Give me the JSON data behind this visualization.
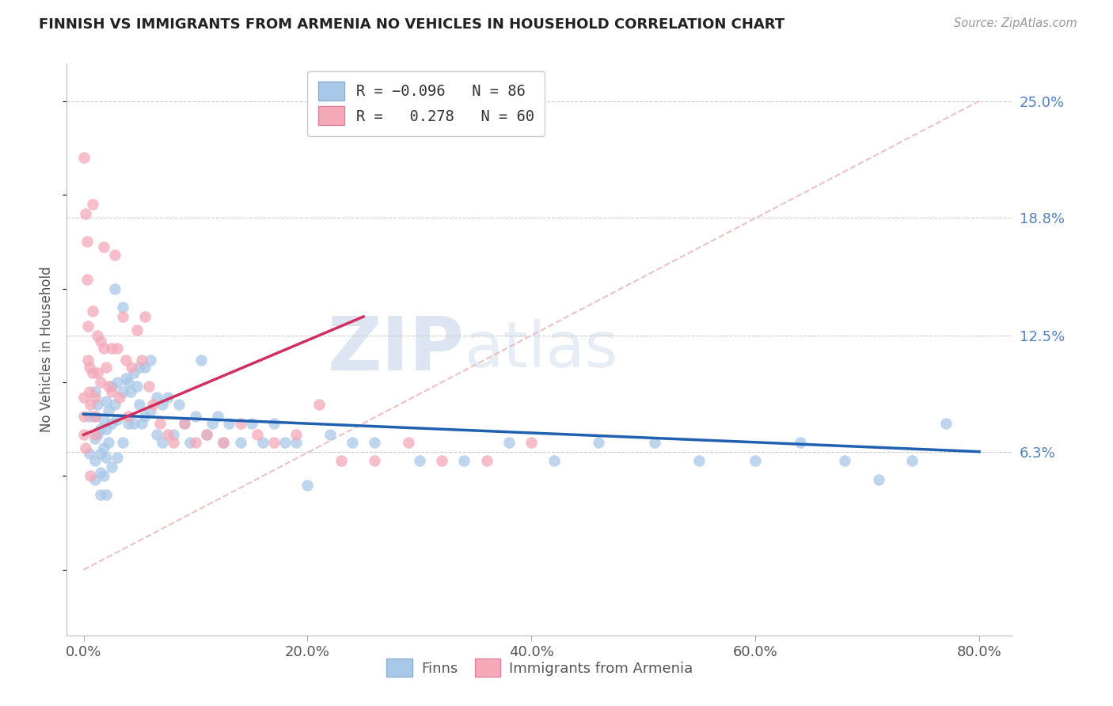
{
  "title": "FINNISH VS IMMIGRANTS FROM ARMENIA NO VEHICLES IN HOUSEHOLD CORRELATION CHART",
  "source": "Source: ZipAtlas.com",
  "xlabel_ticks": [
    "0.0%",
    "20.0%",
    "40.0%",
    "60.0%",
    "80.0%"
  ],
  "xlabel_tick_vals": [
    0.0,
    0.2,
    0.4,
    0.6,
    0.8
  ],
  "ylabel": "No Vehicles in Household",
  "ylabel_ticks": [
    "6.3%",
    "12.5%",
    "18.8%",
    "25.0%"
  ],
  "ylabel_tick_vals": [
    0.063,
    0.125,
    0.188,
    0.25
  ],
  "ymin": -0.035,
  "ymax": 0.27,
  "xmin": -0.015,
  "xmax": 0.83,
  "finns_R": -0.096,
  "finns_N": 86,
  "armenia_R": 0.278,
  "armenia_N": 60,
  "finns_color": "#a8c8e8",
  "armenia_color": "#f4a8b8",
  "finns_line_color": "#2060b0",
  "armenia_line_color": "#d03060",
  "diagonal_line_color": "#e8b8b8",
  "watermark_zip": "ZIP",
  "watermark_atlas": "atlas",
  "finns_x": [
    0.005,
    0.005,
    0.01,
    0.01,
    0.01,
    0.01,
    0.01,
    0.012,
    0.012,
    0.015,
    0.015,
    0.015,
    0.015,
    0.018,
    0.018,
    0.018,
    0.02,
    0.02,
    0.02,
    0.02,
    0.022,
    0.022,
    0.025,
    0.025,
    0.025,
    0.028,
    0.028,
    0.03,
    0.03,
    0.03,
    0.035,
    0.035,
    0.035,
    0.038,
    0.04,
    0.04,
    0.042,
    0.045,
    0.045,
    0.048,
    0.05,
    0.05,
    0.052,
    0.055,
    0.055,
    0.06,
    0.06,
    0.065,
    0.065,
    0.07,
    0.07,
    0.075,
    0.08,
    0.085,
    0.09,
    0.095,
    0.1,
    0.105,
    0.11,
    0.115,
    0.12,
    0.125,
    0.13,
    0.14,
    0.15,
    0.16,
    0.17,
    0.18,
    0.19,
    0.2,
    0.22,
    0.24,
    0.26,
    0.3,
    0.34,
    0.38,
    0.42,
    0.46,
    0.51,
    0.55,
    0.6,
    0.64,
    0.68,
    0.71,
    0.74,
    0.77
  ],
  "finns_y": [
    0.082,
    0.062,
    0.095,
    0.082,
    0.07,
    0.058,
    0.048,
    0.088,
    0.072,
    0.075,
    0.062,
    0.052,
    0.04,
    0.08,
    0.065,
    0.05,
    0.09,
    0.075,
    0.06,
    0.04,
    0.085,
    0.068,
    0.098,
    0.078,
    0.055,
    0.15,
    0.088,
    0.1,
    0.08,
    0.06,
    0.14,
    0.095,
    0.068,
    0.102,
    0.078,
    0.1,
    0.095,
    0.105,
    0.078,
    0.098,
    0.108,
    0.088,
    0.078,
    0.108,
    0.082,
    0.112,
    0.085,
    0.092,
    0.072,
    0.088,
    0.068,
    0.092,
    0.072,
    0.088,
    0.078,
    0.068,
    0.082,
    0.112,
    0.072,
    0.078,
    0.082,
    0.068,
    0.078,
    0.068,
    0.078,
    0.068,
    0.078,
    0.068,
    0.068,
    0.045,
    0.072,
    0.068,
    0.068,
    0.058,
    0.058,
    0.068,
    0.058,
    0.068,
    0.068,
    0.058,
    0.058,
    0.068,
    0.058,
    0.048,
    0.058,
    0.078
  ],
  "armenia_x": [
    0.0,
    0.0,
    0.0,
    0.0,
    0.002,
    0.002,
    0.003,
    0.003,
    0.004,
    0.004,
    0.005,
    0.005,
    0.006,
    0.006,
    0.008,
    0.008,
    0.008,
    0.01,
    0.01,
    0.01,
    0.012,
    0.012,
    0.015,
    0.015,
    0.018,
    0.018,
    0.02,
    0.022,
    0.025,
    0.025,
    0.028,
    0.03,
    0.032,
    0.035,
    0.038,
    0.04,
    0.043,
    0.048,
    0.052,
    0.055,
    0.058,
    0.062,
    0.068,
    0.075,
    0.08,
    0.09,
    0.1,
    0.11,
    0.125,
    0.14,
    0.155,
    0.17,
    0.19,
    0.21,
    0.23,
    0.26,
    0.29,
    0.32,
    0.36,
    0.4
  ],
  "armenia_y": [
    0.22,
    0.092,
    0.082,
    0.072,
    0.19,
    0.065,
    0.175,
    0.155,
    0.13,
    0.112,
    0.108,
    0.095,
    0.088,
    0.05,
    0.195,
    0.138,
    0.105,
    0.092,
    0.082,
    0.072,
    0.125,
    0.105,
    0.122,
    0.1,
    0.172,
    0.118,
    0.108,
    0.098,
    0.118,
    0.095,
    0.168,
    0.118,
    0.092,
    0.135,
    0.112,
    0.082,
    0.108,
    0.128,
    0.112,
    0.135,
    0.098,
    0.088,
    0.078,
    0.072,
    0.068,
    0.078,
    0.068,
    0.072,
    0.068,
    0.078,
    0.072,
    0.068,
    0.072,
    0.088,
    0.058,
    0.058,
    0.068,
    0.058,
    0.058,
    0.068
  ]
}
